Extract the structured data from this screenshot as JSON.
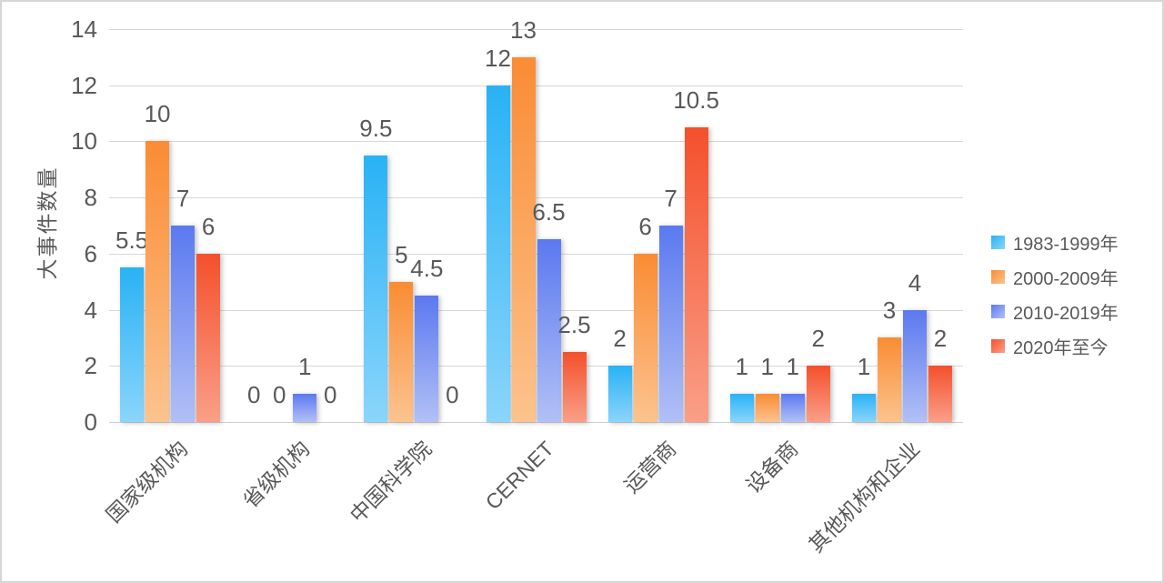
{
  "chart_data": {
    "type": "bar",
    "ylabel": "大事件数量",
    "xlabel": "",
    "categories": [
      "国家级机构",
      "省级机构",
      "中国科学院",
      "CERNET",
      "运营商",
      "设备商",
      "其他机构和企业"
    ],
    "series": [
      {
        "name": "1983-1999年",
        "values": [
          5.5,
          0,
          9.5,
          12,
          2,
          1,
          1
        ],
        "color_top": "#29b2f5",
        "color_bottom": "#8ad5fb"
      },
      {
        "name": "2000-2009年",
        "values": [
          10,
          0,
          5,
          13,
          6,
          1,
          3
        ],
        "color_top": "#fa8c34",
        "color_bottom": "#fcc38e"
      },
      {
        "name": "2010-2019年",
        "values": [
          7,
          1,
          4.5,
          6.5,
          7,
          1,
          4
        ],
        "color_top": "#5b79f0",
        "color_bottom": "#b2c0f6"
      },
      {
        "name": "2020年至今",
        "values": [
          6,
          0,
          0,
          2.5,
          10.5,
          2,
          2
        ],
        "color_top": "#f4502c",
        "color_bottom": "#fa9f88"
      }
    ],
    "ylim": [
      0,
      14
    ],
    "yticks": [
      0,
      2,
      4,
      6,
      8,
      10,
      12,
      14
    ],
    "grid": true,
    "legend_position": "right",
    "text_color": "#595959",
    "gridline_color": "#d7d7d7"
  }
}
